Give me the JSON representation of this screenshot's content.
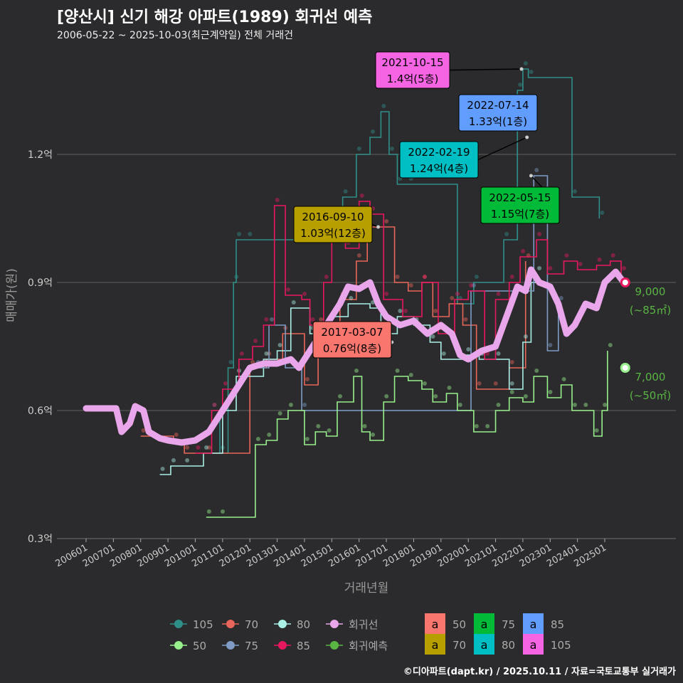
{
  "header": {
    "title": "[양산시] 신기 해강 아파트(1989) 회귀선 예측",
    "subtitle": "2006-05-22 ~ 2025-10-03(최근계약일) 전체 거래건"
  },
  "credit": "©디아파트(dapt.kr) / 2025.10.11 / 자료=국토교통부 실거래가",
  "chart_data": {
    "type": "line",
    "xlabel": "거래년월",
    "ylabel": "매매가(원)",
    "ylim": [
      0.28,
      1.45
    ],
    "xlim": [
      2005.5,
      2027.5
    ],
    "y_ticks": [
      {
        "v": 0.3,
        "label": "0.3억"
      },
      {
        "v": 0.6,
        "label": "0.6억"
      },
      {
        "v": 0.9,
        "label": "0.9억"
      },
      {
        "v": 1.2,
        "label": "1.2억"
      }
    ],
    "x_ticks": [
      "200601",
      "200701",
      "200801",
      "200901",
      "201001",
      "201101",
      "201201",
      "201301",
      "201401",
      "201501",
      "201601",
      "201701",
      "201801",
      "201901",
      "202001",
      "202101",
      "202201",
      "202301",
      "202401",
      "202501"
    ],
    "grid": true,
    "series": [
      {
        "name": "105",
        "color": "#2e8f89",
        "points": [
          [
            2010.6,
            0.6
          ],
          [
            2010.9,
            0.5
          ],
          [
            2011.2,
            0.7
          ],
          [
            2011.4,
            0.9
          ],
          [
            2011.5,
            1.0
          ],
          [
            2011.9,
            1.0
          ],
          [
            2015.0,
            1.04
          ],
          [
            2015.4,
            1.1
          ],
          [
            2015.9,
            1.2
          ],
          [
            2016.4,
            1.24
          ],
          [
            2016.8,
            1.3
          ],
          [
            2017.1,
            1.2
          ],
          [
            2017.4,
            1.13
          ],
          [
            2017.8,
            1.13
          ],
          [
            2019.6,
            0.85
          ],
          [
            2020.2,
            0.9
          ],
          [
            2021.3,
            1.0
          ],
          [
            2021.8,
            1.35
          ],
          [
            2022.0,
            1.4
          ],
          [
            2022.2,
            1.38
          ],
          [
            2023.8,
            1.1
          ],
          [
            2024.8,
            1.05
          ]
        ]
      },
      {
        "name": "70",
        "color": "#e8665a",
        "points": [
          [
            2008.0,
            0.54
          ],
          [
            2009.2,
            0.53
          ],
          [
            2009.6,
            0.5
          ],
          [
            2010.4,
            0.5
          ],
          [
            2012.0,
            0.7
          ],
          [
            2012.6,
            0.72
          ],
          [
            2013.2,
            0.78
          ],
          [
            2014.0,
            0.66
          ],
          [
            2014.5,
            0.8
          ],
          [
            2015.3,
            0.86
          ],
          [
            2015.9,
            0.95
          ],
          [
            2016.3,
            1.03
          ],
          [
            2016.9,
            1.03
          ],
          [
            2017.3,
            0.9
          ],
          [
            2017.8,
            0.88
          ],
          [
            2018.3,
            0.9
          ],
          [
            2018.7,
            0.82
          ],
          [
            2019.3,
            0.85
          ],
          [
            2019.8,
            0.8
          ],
          [
            2020.3,
            0.65
          ],
          [
            2020.9,
            0.65
          ],
          [
            2021.5,
            0.7
          ],
          [
            2022.1,
            0.95
          ]
        ]
      },
      {
        "name": "80",
        "color": "#aaf0e6",
        "points": [
          [
            2008.7,
            0.45
          ],
          [
            2009.1,
            0.47
          ],
          [
            2009.6,
            0.47
          ],
          [
            2010.3,
            0.5
          ],
          [
            2011.0,
            0.6
          ],
          [
            2011.5,
            0.68
          ],
          [
            2012.5,
            0.72
          ],
          [
            2013.0,
            0.74
          ],
          [
            2013.5,
            0.84
          ],
          [
            2014.2,
            0.78
          ],
          [
            2015.0,
            0.82
          ],
          [
            2015.6,
            0.85
          ],
          [
            2016.4,
            0.84
          ],
          [
            2016.8,
            0.78
          ],
          [
            2017.4,
            0.82
          ],
          [
            2018.0,
            0.8
          ],
          [
            2018.6,
            0.76
          ],
          [
            2019.0,
            0.72
          ],
          [
            2019.9,
            0.73
          ],
          [
            2020.4,
            0.72
          ],
          [
            2021.0,
            0.72
          ],
          [
            2021.5,
            0.65
          ],
          [
            2022.0,
            0.76
          ],
          [
            2022.3,
            0.9
          ],
          [
            2022.5,
            0.92
          ]
        ]
      },
      {
        "name": "75",
        "color": "#7e9cc6",
        "points": [
          [
            2012.2,
            0.7
          ],
          [
            2012.7,
            0.8
          ],
          [
            2013.3,
            0.7
          ],
          [
            2013.9,
            0.6
          ],
          [
            2020.1,
            0.88
          ],
          [
            2022.4,
            1.15
          ],
          [
            2022.9,
            0.74
          ],
          [
            2023.3,
            0.85
          ]
        ]
      },
      {
        "name": "85",
        "color": "#e8185f",
        "points": [
          [
            2010.0,
            0.5
          ],
          [
            2010.6,
            0.6
          ],
          [
            2011.0,
            0.65
          ],
          [
            2011.6,
            0.72
          ],
          [
            2012.1,
            0.75
          ],
          [
            2012.5,
            0.8
          ],
          [
            2012.9,
            1.08
          ],
          [
            2013.3,
            0.87
          ],
          [
            2013.9,
            0.86
          ],
          [
            2014.2,
            0.8
          ],
          [
            2014.7,
            0.9
          ],
          [
            2015.0,
            1.05
          ],
          [
            2015.5,
            0.98
          ],
          [
            2016.0,
            1.09
          ],
          [
            2016.4,
            1.06
          ],
          [
            2016.9,
            0.86
          ],
          [
            2017.6,
            0.82
          ],
          [
            2018.3,
            0.9
          ],
          [
            2018.9,
            0.78
          ],
          [
            2019.5,
            0.86
          ],
          [
            2020.0,
            0.88
          ],
          [
            2020.6,
            0.72
          ],
          [
            2021.0,
            0.86
          ],
          [
            2021.5,
            0.9
          ],
          [
            2021.9,
            0.96
          ],
          [
            2022.5,
            1.0
          ],
          [
            2022.9,
            0.92
          ],
          [
            2023.5,
            0.95
          ],
          [
            2024.0,
            0.93
          ],
          [
            2024.7,
            0.94
          ],
          [
            2025.2,
            0.95
          ],
          [
            2025.6,
            0.92
          ]
        ]
      },
      {
        "name": "50",
        "color": "#98f08c",
        "points": [
          [
            2010.4,
            0.35
          ],
          [
            2010.9,
            0.35
          ],
          [
            2012.2,
            0.52
          ],
          [
            2012.6,
            0.53
          ],
          [
            2013.0,
            0.58
          ],
          [
            2013.4,
            0.6
          ],
          [
            2014.0,
            0.52
          ],
          [
            2014.4,
            0.55
          ],
          [
            2014.8,
            0.54
          ],
          [
            2015.2,
            0.62
          ],
          [
            2015.8,
            0.68
          ],
          [
            2016.1,
            0.55
          ],
          [
            2016.4,
            0.53
          ],
          [
            2016.9,
            0.62
          ],
          [
            2017.3,
            0.68
          ],
          [
            2017.8,
            0.67
          ],
          [
            2018.3,
            0.65
          ],
          [
            2018.7,
            0.62
          ],
          [
            2019.2,
            0.64
          ],
          [
            2019.6,
            0.6
          ],
          [
            2020.2,
            0.55
          ],
          [
            2020.6,
            0.55
          ],
          [
            2021.0,
            0.6
          ],
          [
            2021.5,
            0.63
          ],
          [
            2022.0,
            0.62
          ],
          [
            2022.4,
            0.68
          ],
          [
            2022.9,
            0.63
          ],
          [
            2023.4,
            0.66
          ],
          [
            2023.8,
            0.6
          ],
          [
            2024.2,
            0.6
          ],
          [
            2024.6,
            0.54
          ],
          [
            2024.9,
            0.6
          ],
          [
            2025.1,
            0.74
          ]
        ]
      }
    ],
    "regression": {
      "name": "회귀선",
      "color": "#eaa6ea",
      "points": [
        [
          2006.0,
          0.605
        ],
        [
          2007.1,
          0.605
        ],
        [
          2007.3,
          0.55
        ],
        [
          2007.6,
          0.57
        ],
        [
          2007.8,
          0.61
        ],
        [
          2008.1,
          0.6
        ],
        [
          2008.3,
          0.55
        ],
        [
          2008.7,
          0.535
        ],
        [
          2009.0,
          0.53
        ],
        [
          2009.5,
          0.525
        ],
        [
          2010.0,
          0.53
        ],
        [
          2010.5,
          0.55
        ],
        [
          2011.0,
          0.6
        ],
        [
          2011.5,
          0.65
        ],
        [
          2012.0,
          0.7
        ],
        [
          2012.5,
          0.71
        ],
        [
          2013.0,
          0.71
        ],
        [
          2013.5,
          0.72
        ],
        [
          2013.8,
          0.7
        ],
        [
          2014.3,
          0.75
        ],
        [
          2014.8,
          0.8
        ],
        [
          2015.3,
          0.85
        ],
        [
          2015.6,
          0.89
        ],
        [
          2016.0,
          0.885
        ],
        [
          2016.4,
          0.9
        ],
        [
          2016.7,
          0.85
        ],
        [
          2017.0,
          0.82
        ],
        [
          2017.5,
          0.8
        ],
        [
          2018.0,
          0.81
        ],
        [
          2018.5,
          0.78
        ],
        [
          2019.0,
          0.8
        ],
        [
          2019.4,
          0.78
        ],
        [
          2019.7,
          0.73
        ],
        [
          2020.0,
          0.72
        ],
        [
          2020.5,
          0.74
        ],
        [
          2021.0,
          0.75
        ],
        [
          2021.4,
          0.82
        ],
        [
          2021.8,
          0.89
        ],
        [
          2022.1,
          0.88
        ],
        [
          2022.3,
          0.93
        ],
        [
          2022.6,
          0.9
        ],
        [
          2023.0,
          0.89
        ],
        [
          2023.3,
          0.85
        ],
        [
          2023.6,
          0.78
        ],
        [
          2023.9,
          0.8
        ],
        [
          2024.3,
          0.85
        ],
        [
          2024.7,
          0.84
        ],
        [
          2025.0,
          0.9
        ],
        [
          2025.4,
          0.925
        ],
        [
          2025.7,
          0.9
        ]
      ]
    },
    "predictions": [
      {
        "x": 2025.75,
        "v": 0.9,
        "label": "9,000",
        "sub": "(~85㎡)",
        "color": "#e8185f"
      },
      {
        "x": 2025.75,
        "v": 0.7,
        "label": "7,000",
        "sub": "(~50㎡)",
        "color": "#98f08c"
      }
    ],
    "annotations": [
      {
        "date": "2021-10-15",
        "value": "1.4억(5층)",
        "color": "#f564e3",
        "bx": 528,
        "by": 73,
        "px": 2021.95,
        "pv": 1.4
      },
      {
        "date": "2022-07-14",
        "value": "1.33억(1층)",
        "color": "#619cff",
        "bx": 645,
        "by": 133,
        "px": 2022.45,
        "pv": 1.33
      },
      {
        "date": "2022-02-19",
        "value": "1.24억(4층)",
        "color": "#00bfc4",
        "bx": 562,
        "by": 199,
        "px": 2022.15,
        "pv": 1.24
      },
      {
        "date": "2022-05-15",
        "value": "1.15억(7층)",
        "color": "#00ba38",
        "bx": 676,
        "by": 263,
        "px": 2022.3,
        "pv": 1.15
      },
      {
        "date": "2016-09-10",
        "value": "1.03억(12층)",
        "color": "#b79f00",
        "bx": 413,
        "by": 290,
        "px": 2016.7,
        "pv": 1.03
      },
      {
        "date": "2017-03-07",
        "value": "0.76억(8층)",
        "color": "#f8766d",
        "bx": 440,
        "by": 452,
        "px": 2017.2,
        "pv": 0.76
      }
    ],
    "legend_lines": [
      {
        "name": "105",
        "color": "#2e8f89"
      },
      {
        "name": "50",
        "color": "#98f08c"
      },
      {
        "name": "70",
        "color": "#e8665a"
      },
      {
        "name": "75",
        "color": "#7e9cc6"
      },
      {
        "name": "80",
        "color": "#aaf0e6"
      },
      {
        "name": "85",
        "color": "#e8185f"
      },
      {
        "name": "회귀선",
        "color": "#eaa6ea"
      },
      {
        "name": "회귀예측",
        "color": "#5ab543"
      }
    ],
    "legend_boxes": [
      {
        "name": "50",
        "color": "#f8766d"
      },
      {
        "name": "70",
        "color": "#b79f00"
      },
      {
        "name": "75",
        "color": "#00ba38"
      },
      {
        "name": "80",
        "color": "#00bfc4"
      },
      {
        "name": "85",
        "color": "#619cff"
      },
      {
        "name": "105",
        "color": "#f564e3"
      }
    ],
    "legend_box_glyph": "a"
  }
}
